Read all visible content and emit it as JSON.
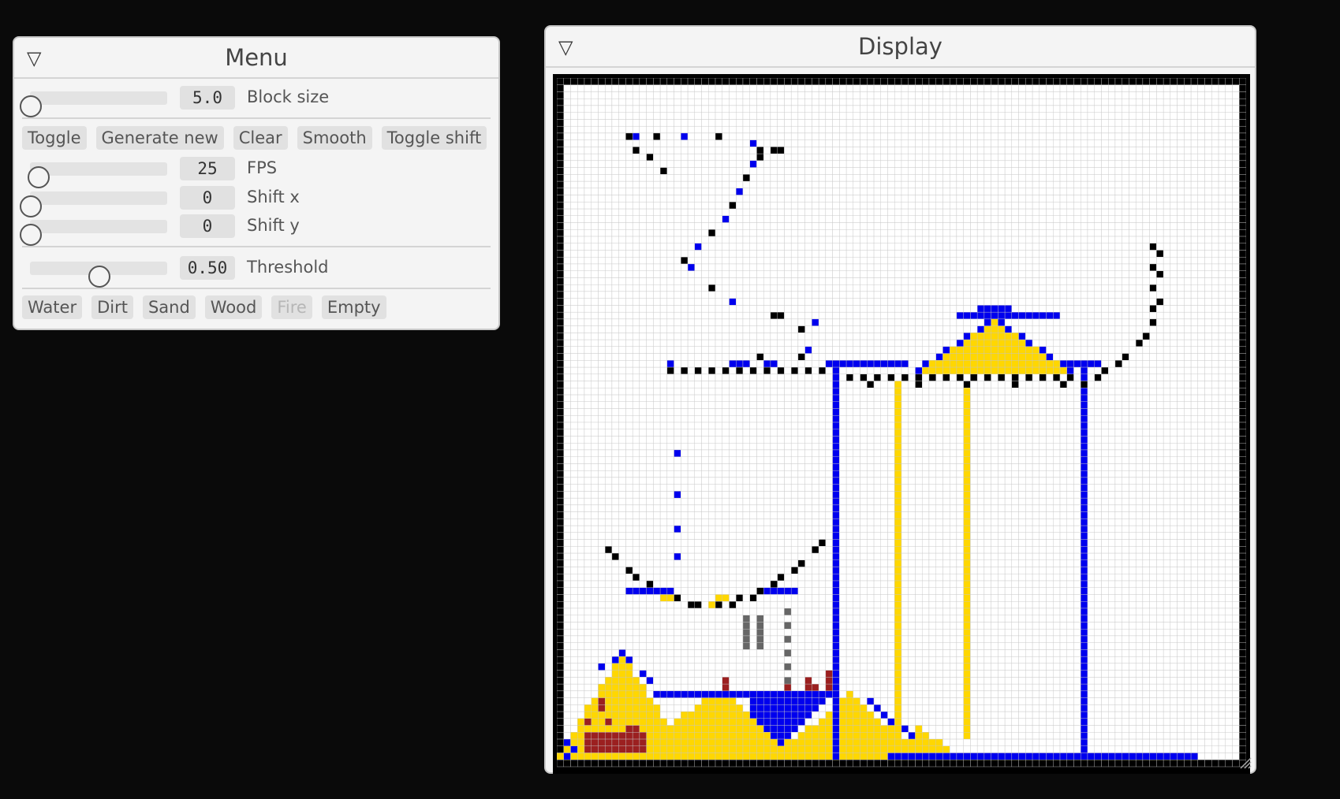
{
  "menu": {
    "title": "Menu",
    "block_size": {
      "value": "5.0",
      "label": "Block size",
      "level": 0.0
    },
    "buttons": [
      "Toggle",
      "Generate new",
      "Clear",
      "Smooth",
      "Toggle shift"
    ],
    "fps": {
      "value": "25",
      "label": "FPS",
      "level": 0.06
    },
    "shift_x": {
      "value": "0",
      "label": "Shift x",
      "level": 0.0
    },
    "shift_y": {
      "value": "0",
      "label": "Shift y",
      "level": 0.0
    },
    "threshold": {
      "value": "0.50",
      "label": "Threshold",
      "level": 0.5
    },
    "materials": [
      {
        "label": "Water",
        "enabled": true
      },
      {
        "label": "Dirt",
        "enabled": true
      },
      {
        "label": "Sand",
        "enabled": true
      },
      {
        "label": "Wood",
        "enabled": true
      },
      {
        "label": "Fire",
        "enabled": false
      },
      {
        "label": "Empty",
        "enabled": true
      }
    ]
  },
  "display": {
    "title": "Display",
    "colors": {
      "water": "#0000ee",
      "sand": "#ffd700",
      "dirt": "#9b2020",
      "wood": "#000000",
      "smoke": "#666666",
      "empty": "#ffffff",
      "grid_line": "#c8c8c8"
    }
  }
}
